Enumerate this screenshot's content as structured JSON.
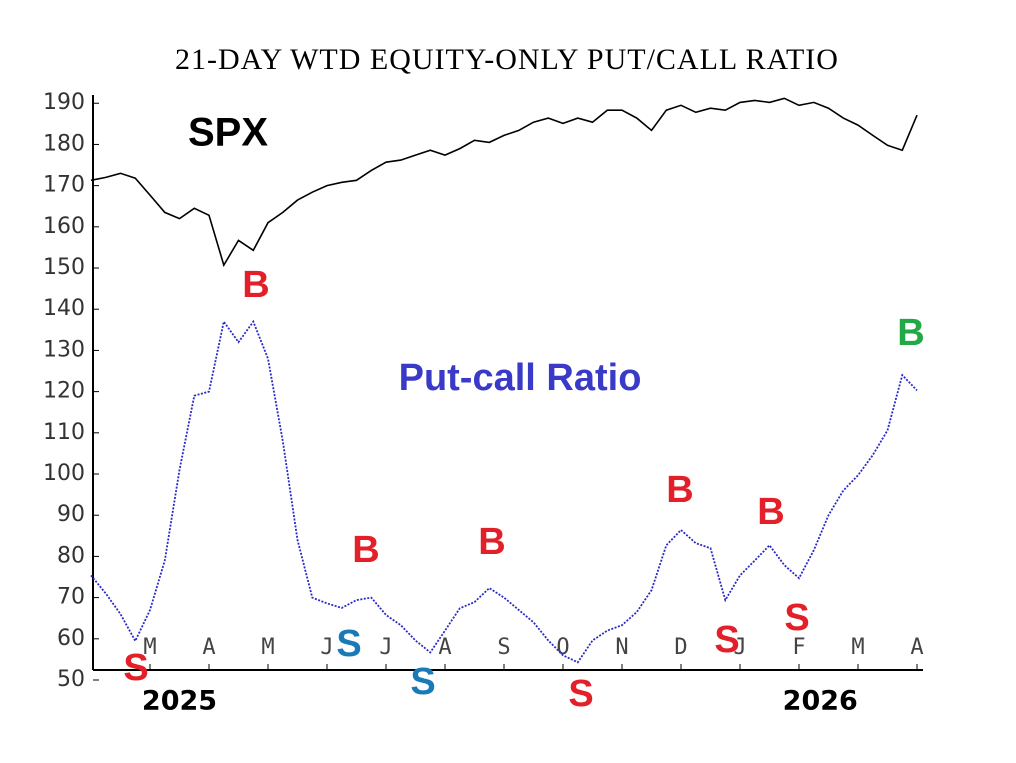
{
  "chart_data": {
    "type": "line",
    "title": "21-DAY WTD EQUITY-ONLY PUT/CALL RATIO",
    "x": [
      0,
      0.25,
      0.5,
      0.75,
      1,
      1.25,
      1.5,
      1.75,
      2,
      2.25,
      2.5,
      2.75,
      3,
      3.25,
      3.5,
      3.75,
      4,
      4.25,
      4.5,
      4.75,
      5,
      5.25,
      5.5,
      5.75,
      6,
      6.25,
      6.5,
      6.75,
      7,
      7.25,
      7.5,
      7.75,
      8,
      8.25,
      8.5,
      8.75,
      9,
      9.25,
      9.5,
      9.75,
      10,
      10.25,
      10.5,
      10.75,
      11,
      11.25,
      11.5,
      11.75,
      12,
      12.25,
      12.5,
      12.75,
      13,
      13.25,
      13.5,
      13.75,
      14
    ],
    "series": [
      {
        "name": "SPX",
        "color": "#000000",
        "values": [
          171.3,
          172,
          173,
          171.8,
          167.7,
          163.5,
          162,
          164.5,
          162.8,
          150.7,
          156.7,
          154.3,
          161,
          163.5,
          166.5,
          168.4,
          170,
          170.8,
          171.3,
          173.7,
          175.7,
          176.2,
          177.4,
          178.6,
          177.4,
          179,
          181,
          180.5,
          182.2,
          183.4,
          185.4,
          186.4,
          185.1,
          186.4,
          185.4,
          188.3,
          188.3,
          186.4,
          183.4,
          188.3,
          189.5,
          187.8,
          188.8,
          188.3,
          190.2,
          190.7,
          190.2,
          191.2,
          189.5,
          190.2,
          188.8,
          186.4,
          184.7,
          182.2,
          179.8,
          178.6,
          187.1
        ]
      },
      {
        "name": "Put-call Ratio",
        "color": "#2a2ac8",
        "values": [
          75.4,
          71,
          66,
          59.5,
          67,
          79,
          101,
          119,
          120,
          137,
          132,
          137,
          128,
          108,
          84,
          70,
          68.6,
          67.5,
          69.4,
          70,
          65.8,
          63.3,
          59.6,
          56.7,
          62,
          67.4,
          68.9,
          72.3,
          70,
          67,
          64,
          59.6,
          56,
          54.3,
          59.6,
          62,
          63.3,
          66.5,
          71.8,
          82.7,
          86.4,
          83.2,
          82,
          69.4,
          75.4,
          79,
          82.7,
          77.9,
          74.7,
          81.5,
          90,
          96,
          99.7,
          104.6,
          110.6,
          124,
          120.3
        ]
      }
    ],
    "xlim": [
      0,
      14.1
    ],
    "xticks": [
      {
        "value": 1,
        "label": "M"
      },
      {
        "value": 2,
        "label": "A"
      },
      {
        "value": 3,
        "label": "M"
      },
      {
        "value": 4,
        "label": "J"
      },
      {
        "value": 5,
        "label": "J"
      },
      {
        "value": 6,
        "label": "A"
      },
      {
        "value": 7,
        "label": "S"
      },
      {
        "value": 8,
        "label": "O"
      },
      {
        "value": 9,
        "label": "N"
      },
      {
        "value": 10,
        "label": "D"
      },
      {
        "value": 11,
        "label": "J"
      },
      {
        "value": 12,
        "label": "F"
      },
      {
        "value": 13,
        "label": "M"
      },
      {
        "value": 14,
        "label": "A"
      }
    ],
    "year_labels": [
      {
        "value": 1.5,
        "label": "2025"
      },
      {
        "value": 12.36,
        "label": "2026"
      }
    ],
    "ylim": [
      50,
      192
    ],
    "yticks": [
      50,
      60,
      70,
      80,
      90,
      100,
      110,
      120,
      130,
      140,
      150,
      160,
      170,
      180,
      190
    ],
    "annotations": [
      {
        "text": "SPX",
        "color": "#000000"
      },
      {
        "text": "Put-call Ratio",
        "color": "#3a3ac8"
      },
      {
        "text": "B",
        "color": "#e3202a"
      },
      {
        "text": "B",
        "color": "#22a844"
      },
      {
        "text": "B",
        "color": "#e3202a"
      },
      {
        "text": "B",
        "color": "#e3202a"
      },
      {
        "text": "B",
        "color": "#e3202a"
      },
      {
        "text": "B",
        "color": "#e3202a"
      },
      {
        "text": "S",
        "color": "#e3202a"
      },
      {
        "text": "S",
        "color": "#1a7ab8"
      },
      {
        "text": "S",
        "color": "#1a7ab8"
      },
      {
        "text": "S",
        "color": "#e3202a"
      },
      {
        "text": "S",
        "color": "#e3202a"
      },
      {
        "text": "S",
        "color": "#e3202a"
      }
    ]
  }
}
